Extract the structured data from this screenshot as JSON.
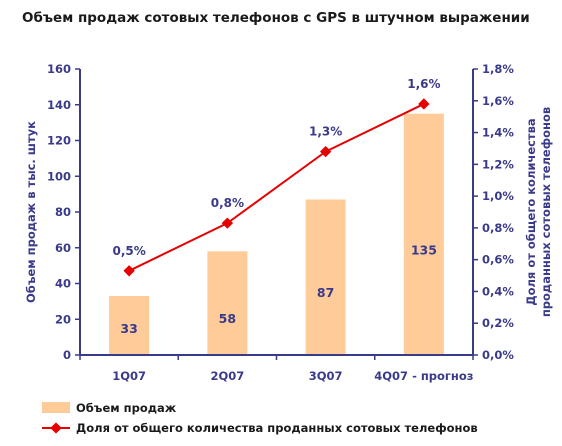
{
  "colors": {
    "bar": "#FFCC99",
    "line": "#E60000",
    "axis": "#3A3A8A",
    "text": "#1A1A1A"
  },
  "chart_data": {
    "type": "bar+line",
    "title": "Объем продаж сотовых телефонов с GPS в штучном выражении",
    "categories": [
      "1Q07",
      "2Q07",
      "3Q07",
      "4Q07 - прогноз"
    ],
    "ylabel_left": "Объем продаж в тыс. штук",
    "ylabel_right_line1": "Доля от общего количества",
    "ylabel_right_line2": "проданных сотовых телефонов",
    "ylim_left": [
      0,
      160
    ],
    "ylim_right": [
      0,
      1.8
    ],
    "yticks_left": [
      "0",
      "20",
      "40",
      "60",
      "80",
      "100",
      "120",
      "140",
      "160"
    ],
    "yticks_right": [
      "0,0%",
      "0,2%",
      "0,4%",
      "0,6%",
      "0,8%",
      "1,0%",
      "1,2%",
      "1,4%",
      "1,6%",
      "1,8%"
    ],
    "grid": false,
    "legend_position": "bottom-left",
    "series": [
      {
        "name": "Объем продаж",
        "type": "bar",
        "axis": "left",
        "values": [
          33,
          58,
          87,
          135
        ],
        "labels": [
          "33",
          "58",
          "87",
          "135"
        ]
      },
      {
        "name": "Доля от общего количества проданных сотовых телефонов",
        "type": "line",
        "axis": "right",
        "values": [
          0.53,
          0.83,
          1.28,
          1.58
        ],
        "labels": [
          "0,5%",
          "0,8%",
          "1,3%",
          "1,6%"
        ]
      }
    ]
  }
}
